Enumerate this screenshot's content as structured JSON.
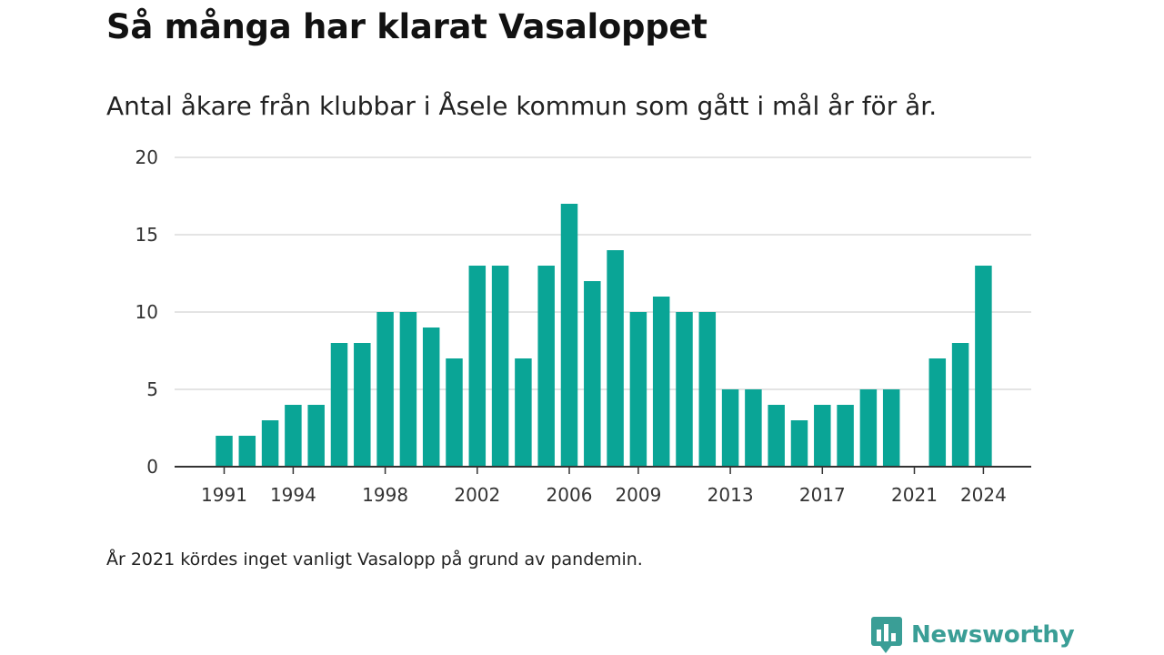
{
  "title": "Så många har klarat Vasaloppet",
  "subtitle": "Antal åkare från klubbar i Åsele kommun som gått i mål år för år.",
  "note": "År 2021 kördes inget vanligt Vasalopp på grund av pandemin.",
  "brand": {
    "name": "Newsworthy",
    "icon": "newsworthy-logo-icon"
  },
  "colors": {
    "bar": "#0aa596",
    "grid": "#dcdcdc",
    "axis": "#333333",
    "brand": "#3a9e96"
  },
  "chart_data": {
    "type": "bar",
    "title": "Så många har klarat Vasaloppet",
    "xlabel": "",
    "ylabel": "",
    "ylim": [
      0,
      20
    ],
    "yticks": [
      0,
      5,
      10,
      15,
      20
    ],
    "xticks": [
      1991,
      1994,
      1998,
      2002,
      2006,
      2009,
      2013,
      2017,
      2021,
      2024
    ],
    "grid": true,
    "categories": [
      1991,
      1992,
      1993,
      1994,
      1995,
      1996,
      1997,
      1998,
      1999,
      2000,
      2001,
      2002,
      2003,
      2004,
      2005,
      2006,
      2007,
      2008,
      2009,
      2010,
      2011,
      2012,
      2013,
      2014,
      2015,
      2016,
      2017,
      2018,
      2019,
      2020,
      2021,
      2022,
      2023,
      2024
    ],
    "values": [
      2,
      2,
      3,
      4,
      4,
      8,
      8,
      10,
      10,
      9,
      7,
      13,
      13,
      7,
      13,
      17,
      12,
      14,
      10,
      11,
      10,
      10,
      5,
      5,
      4,
      3,
      4,
      4,
      5,
      5,
      0,
      7,
      8,
      13
    ]
  }
}
